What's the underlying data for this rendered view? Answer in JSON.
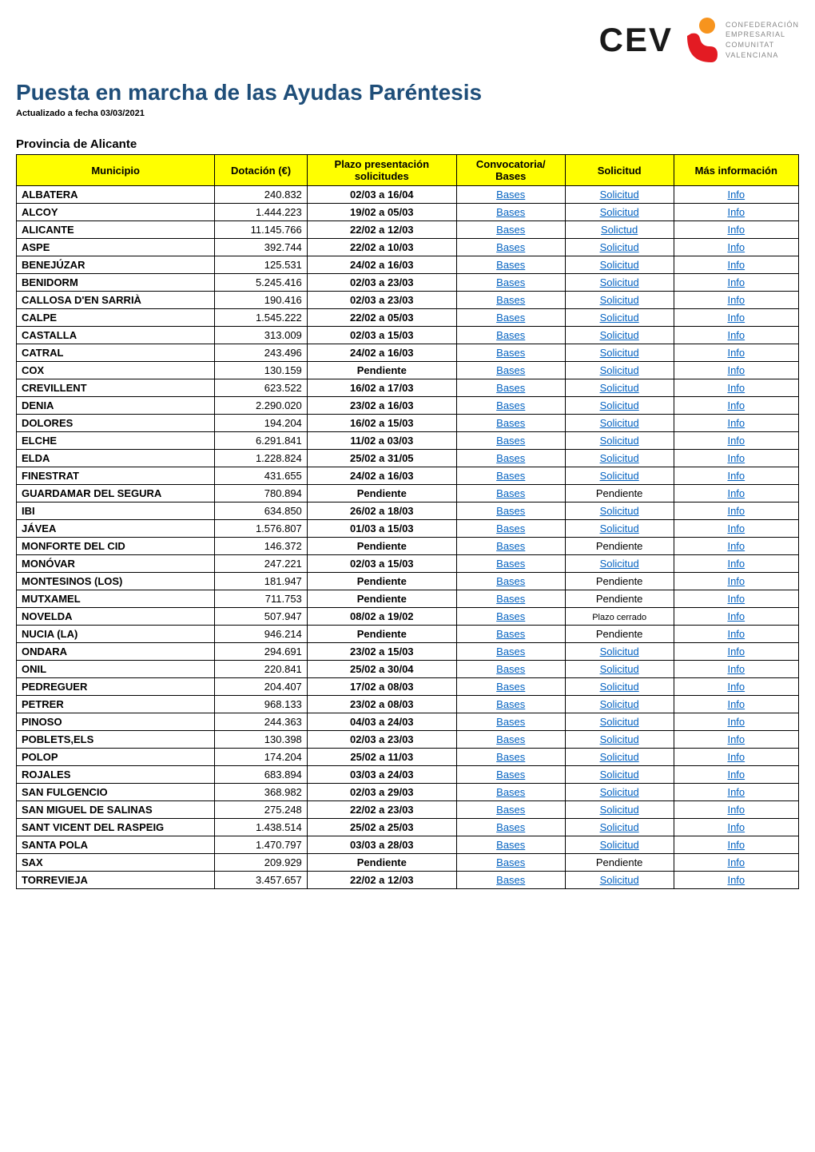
{
  "logo": {
    "text": "CEV",
    "tagline_lines": [
      "CONFEDERACIÓN",
      "EMPRESARIAL",
      "COMUNITAT",
      "VALENCIANA"
    ],
    "icon_top_color": "#f7941e",
    "icon_bottom_color": "#e31b23"
  },
  "main_title": "Puesta en marcha de las Ayudas Paréntesis",
  "subtitle": "Actualizado a fecha 03/03/2021",
  "section_title": "Provincia de Alicante",
  "colors": {
    "title_color": "#1f4e79",
    "header_bg": "#ffff00",
    "link_color": "#0563c1",
    "border_color": "#000000"
  },
  "table": {
    "headers": {
      "municipio": "Municipio",
      "dotacion": "Dotación (€)",
      "plazo_line1": "Plazo presentación",
      "plazo_line2": "solicitudes",
      "convocatoria_line1": "Convocatoria/",
      "convocatoria_line2": "Bases",
      "solicitud": "Solicitud",
      "mas_info": "Más información"
    },
    "rows": [
      {
        "municipio": "ALBATERA",
        "dotacion": "240.832",
        "plazo": "02/03 a 16/04",
        "bases": "Bases",
        "solicitud": "Solicitud",
        "solicitud_link": true,
        "info": "Info"
      },
      {
        "municipio": "ALCOY",
        "dotacion": "1.444.223",
        "plazo": "19/02 a 05/03",
        "bases": "Bases",
        "solicitud": "Solicitud",
        "solicitud_link": true,
        "info": "Info"
      },
      {
        "municipio": "ALICANTE",
        "dotacion": "11.145.766",
        "plazo": "22/02 a 12/03",
        "bases": "Bases",
        "solicitud": "Solictud",
        "solicitud_link": true,
        "info": "Info"
      },
      {
        "municipio": "ASPE",
        "dotacion": "392.744",
        "plazo": "22/02 a 10/03",
        "bases": "Bases",
        "solicitud": "Solicitud",
        "solicitud_link": true,
        "info": "Info"
      },
      {
        "municipio": "BENEJÚZAR",
        "dotacion": "125.531",
        "plazo": "24/02 a 16/03",
        "bases": "Bases",
        "solicitud": "Solicitud",
        "solicitud_link": true,
        "info": "Info"
      },
      {
        "municipio": "BENIDORM",
        "dotacion": "5.245.416",
        "plazo": "02/03 a 23/03",
        "bases": "Bases",
        "solicitud": "Solicitud",
        "solicitud_link": true,
        "info": "Info"
      },
      {
        "municipio": "CALLOSA D'EN SARRIÀ",
        "dotacion": "190.416",
        "plazo": "02/03 a 23/03",
        "bases": "Bases",
        "solicitud": "Solicitud",
        "solicitud_link": true,
        "info": "Info"
      },
      {
        "municipio": "CALPE",
        "dotacion": "1.545.222",
        "plazo": "22/02 a 05/03",
        "bases": "Bases",
        "solicitud": "Solicitud",
        "solicitud_link": true,
        "info": "Info"
      },
      {
        "municipio": "CASTALLA",
        "dotacion": "313.009",
        "plazo": "02/03 a 15/03",
        "bases": "Bases",
        "solicitud": "Solicitud",
        "solicitud_link": true,
        "info": "Info"
      },
      {
        "municipio": "CATRAL",
        "dotacion": "243.496",
        "plazo": "24/02 a 16/03",
        "bases": "Bases",
        "solicitud": "Solicitud",
        "solicitud_link": true,
        "info": "Info"
      },
      {
        "municipio": "COX",
        "dotacion": "130.159",
        "plazo": "Pendiente",
        "bases": "Bases",
        "solicitud": "Solicitud",
        "solicitud_link": true,
        "info": "Info"
      },
      {
        "municipio": "CREVILLENT",
        "dotacion": "623.522",
        "plazo": "16/02 a 17/03",
        "bases": "Bases",
        "solicitud": "Solicitud",
        "solicitud_link": true,
        "info": "Info"
      },
      {
        "municipio": "DENIA",
        "dotacion": "2.290.020",
        "plazo": "23/02 a 16/03",
        "bases": "Bases",
        "solicitud": "Solicitud",
        "solicitud_link": true,
        "info": "Info"
      },
      {
        "municipio": "DOLORES",
        "dotacion": "194.204",
        "plazo": "16/02 a 15/03",
        "bases": "Bases",
        "solicitud": "Solicitud",
        "solicitud_link": true,
        "info": "Info"
      },
      {
        "municipio": "ELCHE",
        "dotacion": "6.291.841",
        "plazo": "11/02 a 03/03",
        "bases": "Bases",
        "solicitud": "Solicitud",
        "solicitud_link": true,
        "info": "Info"
      },
      {
        "municipio": "ELDA",
        "dotacion": "1.228.824",
        "plazo": "25/02 a 31/05",
        "bases": "Bases",
        "solicitud": "Solicitud",
        "solicitud_link": true,
        "info": "Info"
      },
      {
        "municipio": "FINESTRAT",
        "dotacion": "431.655",
        "plazo": "24/02 a 16/03",
        "bases": "Bases",
        "solicitud": "Solicitud",
        "solicitud_link": true,
        "info": "Info"
      },
      {
        "municipio": "GUARDAMAR DEL SEGURA",
        "dotacion": "780.894",
        "plazo": "Pendiente",
        "bases": "Bases",
        "solicitud": "Pendiente",
        "solicitud_link": false,
        "info": "Info"
      },
      {
        "municipio": "IBI",
        "dotacion": "634.850",
        "plazo": "26/02 a 18/03",
        "bases": "Bases",
        "solicitud": "Solicitud",
        "solicitud_link": true,
        "info": "Info"
      },
      {
        "municipio": "JÁVEA",
        "dotacion": "1.576.807",
        "plazo": "01/03 a 15/03",
        "bases": "Bases",
        "solicitud": "Solicitud",
        "solicitud_link": true,
        "info": "Info"
      },
      {
        "municipio": "MONFORTE DEL CID",
        "dotacion": "146.372",
        "plazo": "Pendiente",
        "bases": "Bases",
        "solicitud": "Pendiente",
        "solicitud_link": false,
        "info": "Info"
      },
      {
        "municipio": "MONÓVAR",
        "dotacion": "247.221",
        "plazo": "02/03 a 15/03",
        "bases": "Bases",
        "solicitud": "Solicitud",
        "solicitud_link": true,
        "info": "Info"
      },
      {
        "municipio": "MONTESINOS (LOS)",
        "dotacion": "181.947",
        "plazo": "Pendiente",
        "bases": "Bases",
        "solicitud": "Pendiente",
        "solicitud_link": false,
        "info": "Info"
      },
      {
        "municipio": "MUTXAMEL",
        "dotacion": "711.753",
        "plazo": "Pendiente",
        "bases": "Bases",
        "solicitud": "Pendiente",
        "solicitud_link": false,
        "info": "Info"
      },
      {
        "municipio": "NOVELDA",
        "dotacion": "507.947",
        "plazo": "08/02 a 19/02",
        "bases": "Bases",
        "solicitud": "Plazo cerrado",
        "solicitud_link": false,
        "small": true,
        "info": "Info"
      },
      {
        "municipio": "NUCIA (LA)",
        "dotacion": "946.214",
        "plazo": "Pendiente",
        "bases": "Bases",
        "solicitud": "Pendiente",
        "solicitud_link": false,
        "info": "Info"
      },
      {
        "municipio": "ONDARA",
        "dotacion": "294.691",
        "plazo": "23/02 a 15/03",
        "bases": "Bases",
        "solicitud": "Solicitud",
        "solicitud_link": true,
        "info": "Info"
      },
      {
        "municipio": "ONIL",
        "dotacion": "220.841",
        "plazo": "25/02 a 30/04",
        "bases": "Bases",
        "solicitud": "Solicitud",
        "solicitud_link": true,
        "info": "Info"
      },
      {
        "municipio": "PEDREGUER",
        "dotacion": "204.407",
        "plazo": "17/02 a 08/03",
        "bases": "Bases",
        "solicitud": "Solicitud",
        "solicitud_link": true,
        "info": "Info"
      },
      {
        "municipio": "PETRER",
        "dotacion": "968.133",
        "plazo": "23/02 a 08/03",
        "bases": "Bases",
        "solicitud": "Solicitud",
        "solicitud_link": true,
        "info": "Info"
      },
      {
        "municipio": "PINOSO",
        "dotacion": "244.363",
        "plazo": "04/03 a 24/03",
        "bases": "Bases",
        "solicitud": "Solicitud",
        "solicitud_link": true,
        "info": "Info"
      },
      {
        "municipio": "POBLETS,ELS",
        "dotacion": "130.398",
        "plazo": "02/03 a 23/03",
        "bases": "Bases",
        "solicitud": "Solicitud",
        "solicitud_link": true,
        "info": "Info"
      },
      {
        "municipio": "POLOP",
        "dotacion": "174.204",
        "plazo": "25/02 a 11/03",
        "bases": "Bases",
        "solicitud": "Solicitud",
        "solicitud_link": true,
        "info": "Info"
      },
      {
        "municipio": "ROJALES",
        "dotacion": "683.894",
        "plazo": "03/03 a 24/03",
        "bases": "Bases",
        "solicitud": "Solicitud",
        "solicitud_link": true,
        "info": "Info"
      },
      {
        "municipio": "SAN FULGENCIO",
        "dotacion": "368.982",
        "plazo": "02/03 a 29/03",
        "bases": "Bases",
        "solicitud": "Solicitud",
        "solicitud_link": true,
        "info": "Info"
      },
      {
        "municipio": "SAN MIGUEL DE SALINAS",
        "dotacion": "275.248",
        "plazo": "22/02 a 23/03",
        "bases": "Bases",
        "solicitud": "Solicitud",
        "solicitud_link": true,
        "info": "Info"
      },
      {
        "municipio": "SANT VICENT DEL RASPEIG",
        "dotacion": "1.438.514",
        "plazo": "25/02 a 25/03",
        "bases": "Bases",
        "solicitud": "Solicitud",
        "solicitud_link": true,
        "info": "Info"
      },
      {
        "municipio": "SANTA POLA",
        "dotacion": "1.470.797",
        "plazo": "03/03 a 28/03",
        "bases": "Bases",
        "solicitud": "Solicitud",
        "solicitud_link": true,
        "info": "Info"
      },
      {
        "municipio": "SAX",
        "dotacion": "209.929",
        "plazo": "Pendiente",
        "bases": "Bases",
        "solicitud": "Pendiente",
        "solicitud_link": false,
        "info": "Info"
      },
      {
        "municipio": "TORREVIEJA",
        "dotacion": "3.457.657",
        "plazo": "22/02 a 12/03",
        "bases": "Bases",
        "solicitud": "Solicitud",
        "solicitud_link": true,
        "info": "Info"
      }
    ]
  }
}
